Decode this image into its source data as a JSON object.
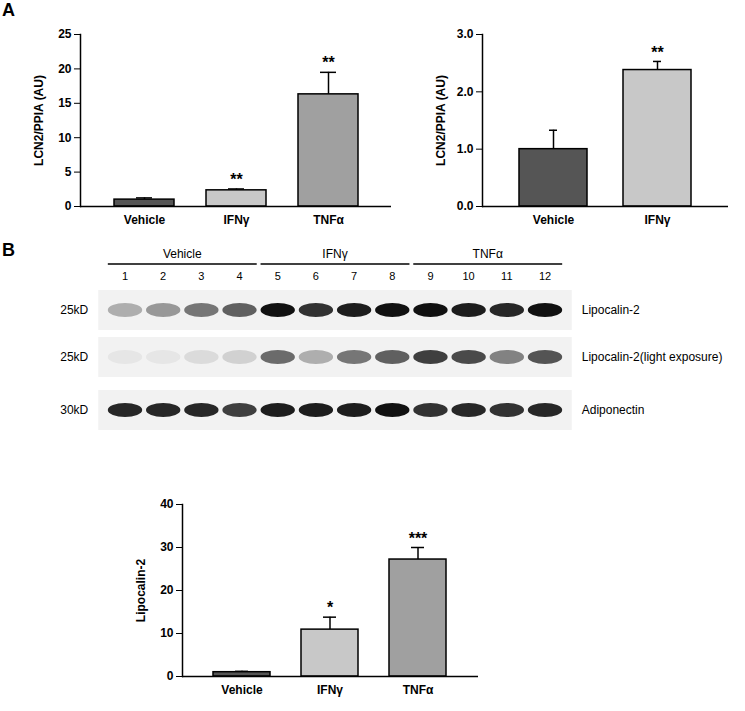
{
  "chart_data": [
    {
      "type": "bar",
      "panel_label": "A",
      "ylabel": "LCN2/PPIA (AU)",
      "categories": [
        "Vehicle",
        "IFNγ",
        "TNFα"
      ],
      "values": [
        1.0,
        2.35,
        16.3
      ],
      "errors": [
        0.25,
        0.2,
        3.2
      ],
      "annotations": [
        null,
        "**",
        "**"
      ],
      "colors": [
        "#555555",
        "#c8c8c8",
        "#a0a0a0"
      ],
      "ylim": [
        0,
        25
      ],
      "yticks": [
        0,
        5,
        10,
        15,
        20,
        25
      ]
    },
    {
      "type": "bar",
      "ylabel": "LCN2/PPIA (AU)",
      "categories": [
        "Vehicle",
        "IFNγ"
      ],
      "values": [
        1.0,
        2.38
      ],
      "errors": [
        0.33,
        0.15
      ],
      "annotations": [
        null,
        "**"
      ],
      "colors": [
        "#555555",
        "#c8c8c8"
      ],
      "ylim": [
        0,
        3
      ],
      "yticks": [
        0,
        1,
        2,
        3
      ]
    },
    {
      "type": "bar",
      "ylabel": "Lipocalin-2",
      "categories": [
        "Vehicle",
        "IFNγ",
        "TNFα"
      ],
      "values": [
        1.0,
        10.9,
        27.2
      ],
      "errors": [
        0.2,
        2.9,
        2.8
      ],
      "annotations": [
        null,
        "*",
        "***"
      ],
      "colors": [
        "#555555",
        "#c8c8c8",
        "#a0a0a0"
      ],
      "ylim": [
        0,
        40
      ],
      "yticks": [
        0,
        10,
        20,
        30,
        40
      ]
    }
  ],
  "blot": {
    "panel_label": "B",
    "groups": [
      {
        "label": "Vehicle",
        "lanes": [
          1,
          2,
          3,
          4
        ]
      },
      {
        "label": "IFNγ",
        "lanes": [
          5,
          6,
          7,
          8
        ]
      },
      {
        "label": "TNFα",
        "lanes": [
          9,
          10,
          11,
          12
        ]
      }
    ],
    "rows": [
      {
        "mw": "25kD",
        "label": "Lipocalin-2",
        "intensity": [
          0.3,
          0.4,
          0.55,
          0.65,
          1,
          0.85,
          0.95,
          1,
          1,
          0.95,
          0.9,
          1
        ]
      },
      {
        "mw": "25kD",
        "label": "Lipocalin-2(light exposure)",
        "intensity": [
          0.05,
          0.05,
          0.1,
          0.15,
          0.6,
          0.3,
          0.55,
          0.65,
          0.8,
          0.75,
          0.5,
          0.7
        ]
      },
      {
        "mw": "30kD",
        "label": "Adiponectin",
        "intensity": [
          0.9,
          0.9,
          0.9,
          0.8,
          0.95,
          0.95,
          0.95,
          1,
          0.85,
          0.9,
          0.85,
          0.9
        ]
      }
    ]
  }
}
